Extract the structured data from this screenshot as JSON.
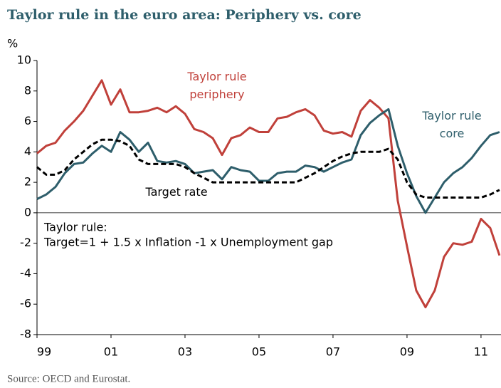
{
  "chart_data": {
    "type": "line",
    "title": "Taylor rule in the euro area: Periphery vs. core",
    "y_label": "%",
    "source": "Source: OECD and Eurostat.",
    "annotation": [
      "Taylor rule:",
      "Target=1 + 1.5 x Inflation -1 x Unemployment gap"
    ],
    "x": [
      1999,
      1999.25,
      1999.5,
      1999.75,
      2000,
      2000.25,
      2000.5,
      2000.75,
      2001,
      2001.25,
      2001.5,
      2001.75,
      2002,
      2002.25,
      2002.5,
      2002.75,
      2003,
      2003.25,
      2003.5,
      2003.75,
      2004,
      2004.25,
      2004.5,
      2004.75,
      2005,
      2005.25,
      2005.5,
      2005.75,
      2006,
      2006.25,
      2006.5,
      2006.75,
      2007,
      2007.25,
      2007.5,
      2007.75,
      2008,
      2008.25,
      2008.5,
      2008.75,
      2009,
      2009.25,
      2009.5,
      2009.75,
      2010,
      2010.25,
      2010.5,
      2010.75,
      2011,
      2011.25,
      2011.5
    ],
    "series": [
      {
        "name": "Taylor rule periphery",
        "color": "#c0403a",
        "dash": false,
        "values": [
          3.9,
          4.4,
          4.6,
          5.4,
          6.0,
          6.7,
          7.7,
          8.7,
          7.1,
          8.1,
          6.6,
          6.6,
          6.7,
          6.9,
          6.6,
          7.0,
          6.5,
          5.5,
          5.3,
          4.9,
          3.8,
          4.9,
          5.1,
          5.6,
          5.3,
          5.3,
          6.2,
          6.3,
          6.6,
          6.8,
          6.4,
          5.4,
          5.2,
          5.3,
          5.0,
          6.7,
          7.4,
          6.9,
          6.2,
          0.8,
          -2.2,
          -5.1,
          -6.2,
          -5.1,
          -2.9,
          -2.0,
          -2.1,
          -1.9,
          -0.4,
          -1.0,
          -2.8
        ]
      },
      {
        "name": "Taylor rule core",
        "color": "#2e5e6b",
        "dash": false,
        "values": [
          0.9,
          1.2,
          1.7,
          2.6,
          3.2,
          3.3,
          3.9,
          4.4,
          4.0,
          5.3,
          4.8,
          4.0,
          4.6,
          3.4,
          3.3,
          3.4,
          3.2,
          2.6,
          2.7,
          2.8,
          2.2,
          3.0,
          2.8,
          2.7,
          2.1,
          2.1,
          2.6,
          2.7,
          2.7,
          3.1,
          3.0,
          2.7,
          3.0,
          3.3,
          3.5,
          5.1,
          5.9,
          6.4,
          6.8,
          4.4,
          2.6,
          1.1,
          0.0,
          1.0,
          2.0,
          2.6,
          3.0,
          3.6,
          4.4,
          5.1,
          5.3
        ]
      },
      {
        "name": "Target rate",
        "color": "#000000",
        "dash": true,
        "values": [
          3.0,
          2.5,
          2.5,
          2.8,
          3.5,
          4.0,
          4.5,
          4.8,
          4.8,
          4.7,
          4.4,
          3.5,
          3.2,
          3.2,
          3.2,
          3.2,
          3.0,
          2.6,
          2.3,
          2.0,
          2.0,
          2.0,
          2.0,
          2.0,
          2.0,
          2.0,
          2.0,
          2.0,
          2.0,
          2.3,
          2.6,
          3.0,
          3.4,
          3.7,
          3.9,
          4.0,
          4.0,
          4.0,
          4.2,
          3.5,
          2.0,
          1.2,
          1.0,
          1.0,
          1.0,
          1.0,
          1.0,
          1.0,
          1.0,
          1.2,
          1.5
        ]
      }
    ],
    "xlim": [
      1999,
      2011.54
    ],
    "xticks": [
      {
        "value": 1999,
        "label": "99"
      },
      {
        "value": 2001,
        "label": "01"
      },
      {
        "value": 2003,
        "label": "03"
      },
      {
        "value": 2005,
        "label": "05"
      },
      {
        "value": 2007,
        "label": "07"
      },
      {
        "value": 2009,
        "label": "09"
      },
      {
        "value": 2011,
        "label": "11"
      }
    ],
    "ylim": [
      -8,
      10
    ],
    "yticks": [
      -8,
      -6,
      -4,
      -2,
      0,
      2,
      4,
      6,
      8,
      10
    ],
    "grid": false
  }
}
